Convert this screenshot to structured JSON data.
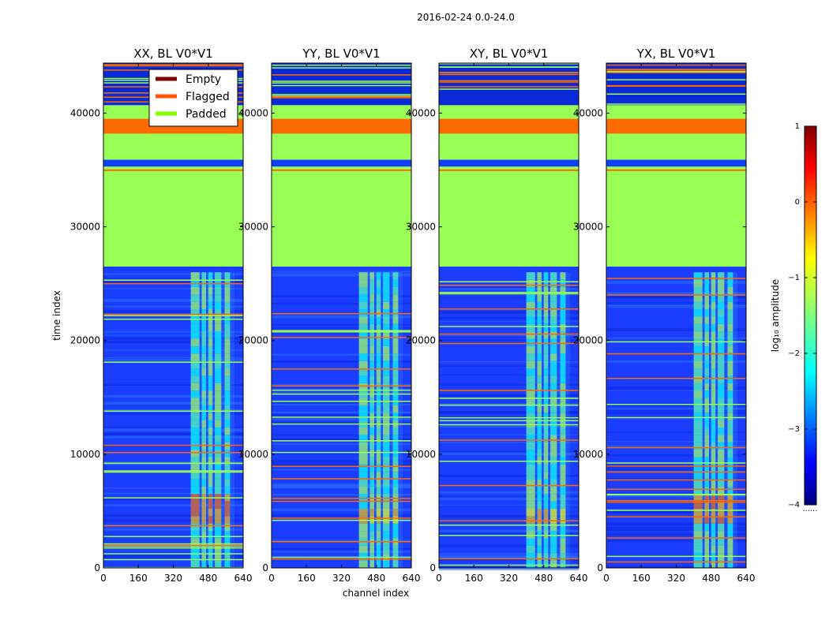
{
  "figure_title": "2016-02-24 0.0-24.0",
  "colors": {
    "padded": "#99ff55",
    "flagged": "#ff6a00",
    "empty": "#800000",
    "noise_base": "#1a3dff",
    "noise_light": "#2a6cff",
    "axes": "#000000"
  },
  "chart_data": {
    "type": "heatmap",
    "xlabel": "channel index",
    "ylabel": "time index",
    "xlim": [
      0,
      640
    ],
    "ylim": [
      0,
      44400
    ],
    "xticks": [
      0,
      160,
      320,
      480,
      640
    ],
    "yticks": [
      0,
      10000,
      20000,
      30000,
      40000
    ],
    "panels": [
      {
        "title": "XX, BL V0*V1"
      },
      {
        "title": "YY, BL V0*V1"
      },
      {
        "title": "XY, BL V0*V1"
      },
      {
        "title": "YX, BL V0*V1"
      }
    ],
    "padded_ranges": [
      [
        26500,
        35300
      ],
      [
        38200,
        40700
      ]
    ],
    "flagged_ranges": [
      [
        38200,
        39500
      ]
    ],
    "legend": {
      "location": "top-left of first panel",
      "entries": [
        {
          "label": "Empty",
          "color": "#800000"
        },
        {
          "label": "Flagged",
          "color": "#ff5500"
        },
        {
          "label": "Padded",
          "color": "#7fff00"
        }
      ]
    },
    "colorbar": {
      "label": "log₁₀ amplitude",
      "range": [
        -4,
        1
      ],
      "ticks": [
        "1",
        "0",
        "−1",
        "−2",
        "−3",
        "−4"
      ],
      "colormap": "jet",
      "footnote": "......"
    }
  }
}
